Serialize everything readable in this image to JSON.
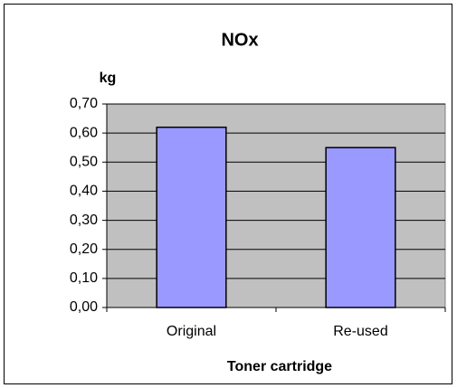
{
  "chart_data": {
    "type": "bar",
    "title": "NOx",
    "y_label": "kg",
    "x_label": "Toner cartridge",
    "categories": [
      "Original",
      "Re-used"
    ],
    "values": [
      0.62,
      0.55
    ],
    "color": "#9999ff",
    "ylim": [
      0,
      0.7
    ],
    "yticks": [
      {
        "value": 0,
        "label": "0,00"
      },
      {
        "value": 0.1,
        "label": "0,10"
      },
      {
        "value": 0.2,
        "label": "0,20"
      },
      {
        "value": 0.3,
        "label": "0,30"
      },
      {
        "value": 0.4,
        "label": "0,40"
      },
      {
        "value": 0.5,
        "label": "0,50"
      },
      {
        "value": 0.6,
        "label": "0,60"
      },
      {
        "value": 0.7,
        "label": "0,70"
      }
    ],
    "grid": true
  }
}
